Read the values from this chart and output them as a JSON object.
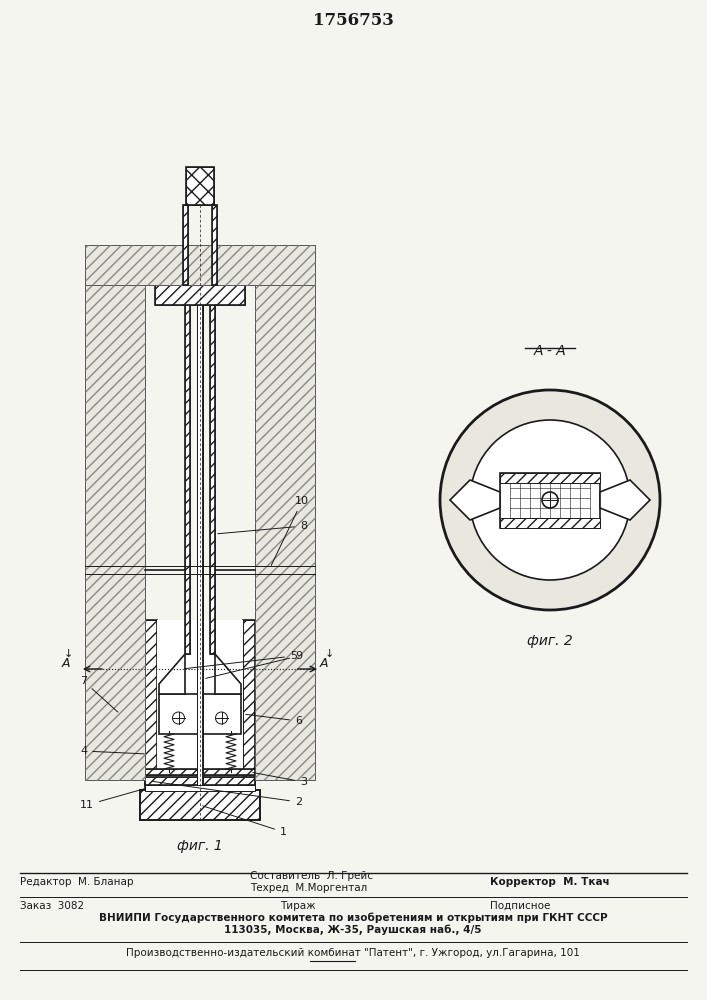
{
  "patent_number": "1756753",
  "fig1_caption": "фиг. 1",
  "fig2_caption": "фиг. 2",
  "section_label": "A - A",
  "labels": {
    "1": [
      1,
      ""
    ],
    "2": [
      2,
      ""
    ],
    "3": [
      3,
      ""
    ],
    "4": [
      4,
      ""
    ],
    "5": [
      5,
      ""
    ],
    "6": [
      6,
      ""
    ],
    "7": [
      7,
      ""
    ],
    "8": [
      8,
      ""
    ],
    "9": [
      9,
      ""
    ],
    "10": [
      10,
      ""
    ],
    "11": [
      11,
      ""
    ]
  },
  "editor_line": "Редактор  М. Бланар",
  "composer_line": "Составитель  Л. Грейс",
  "techred_line": "Техред  М.Моргентал",
  "corrector_line": "Корректор  М. Ткач",
  "order_line": "Заказ  3082",
  "tirazh_line": "Тираж",
  "podpisnoe_line": "Подписное",
  "vniip_line1": "ВНИИПИ Государственного комитета по изобретениям и открытиям при ГКНТ СССР",
  "vniip_line2": "113035, Москва, Ж-35, Раушская наб., 4/5",
  "patent_line": "Производственно-издательский комбинат \"Патент\", г. Ужгород, ул.Гагарина, 101",
  "bg_color": "#f5f5f0",
  "line_color": "#1a1a1a",
  "hatch_color": "#333333"
}
